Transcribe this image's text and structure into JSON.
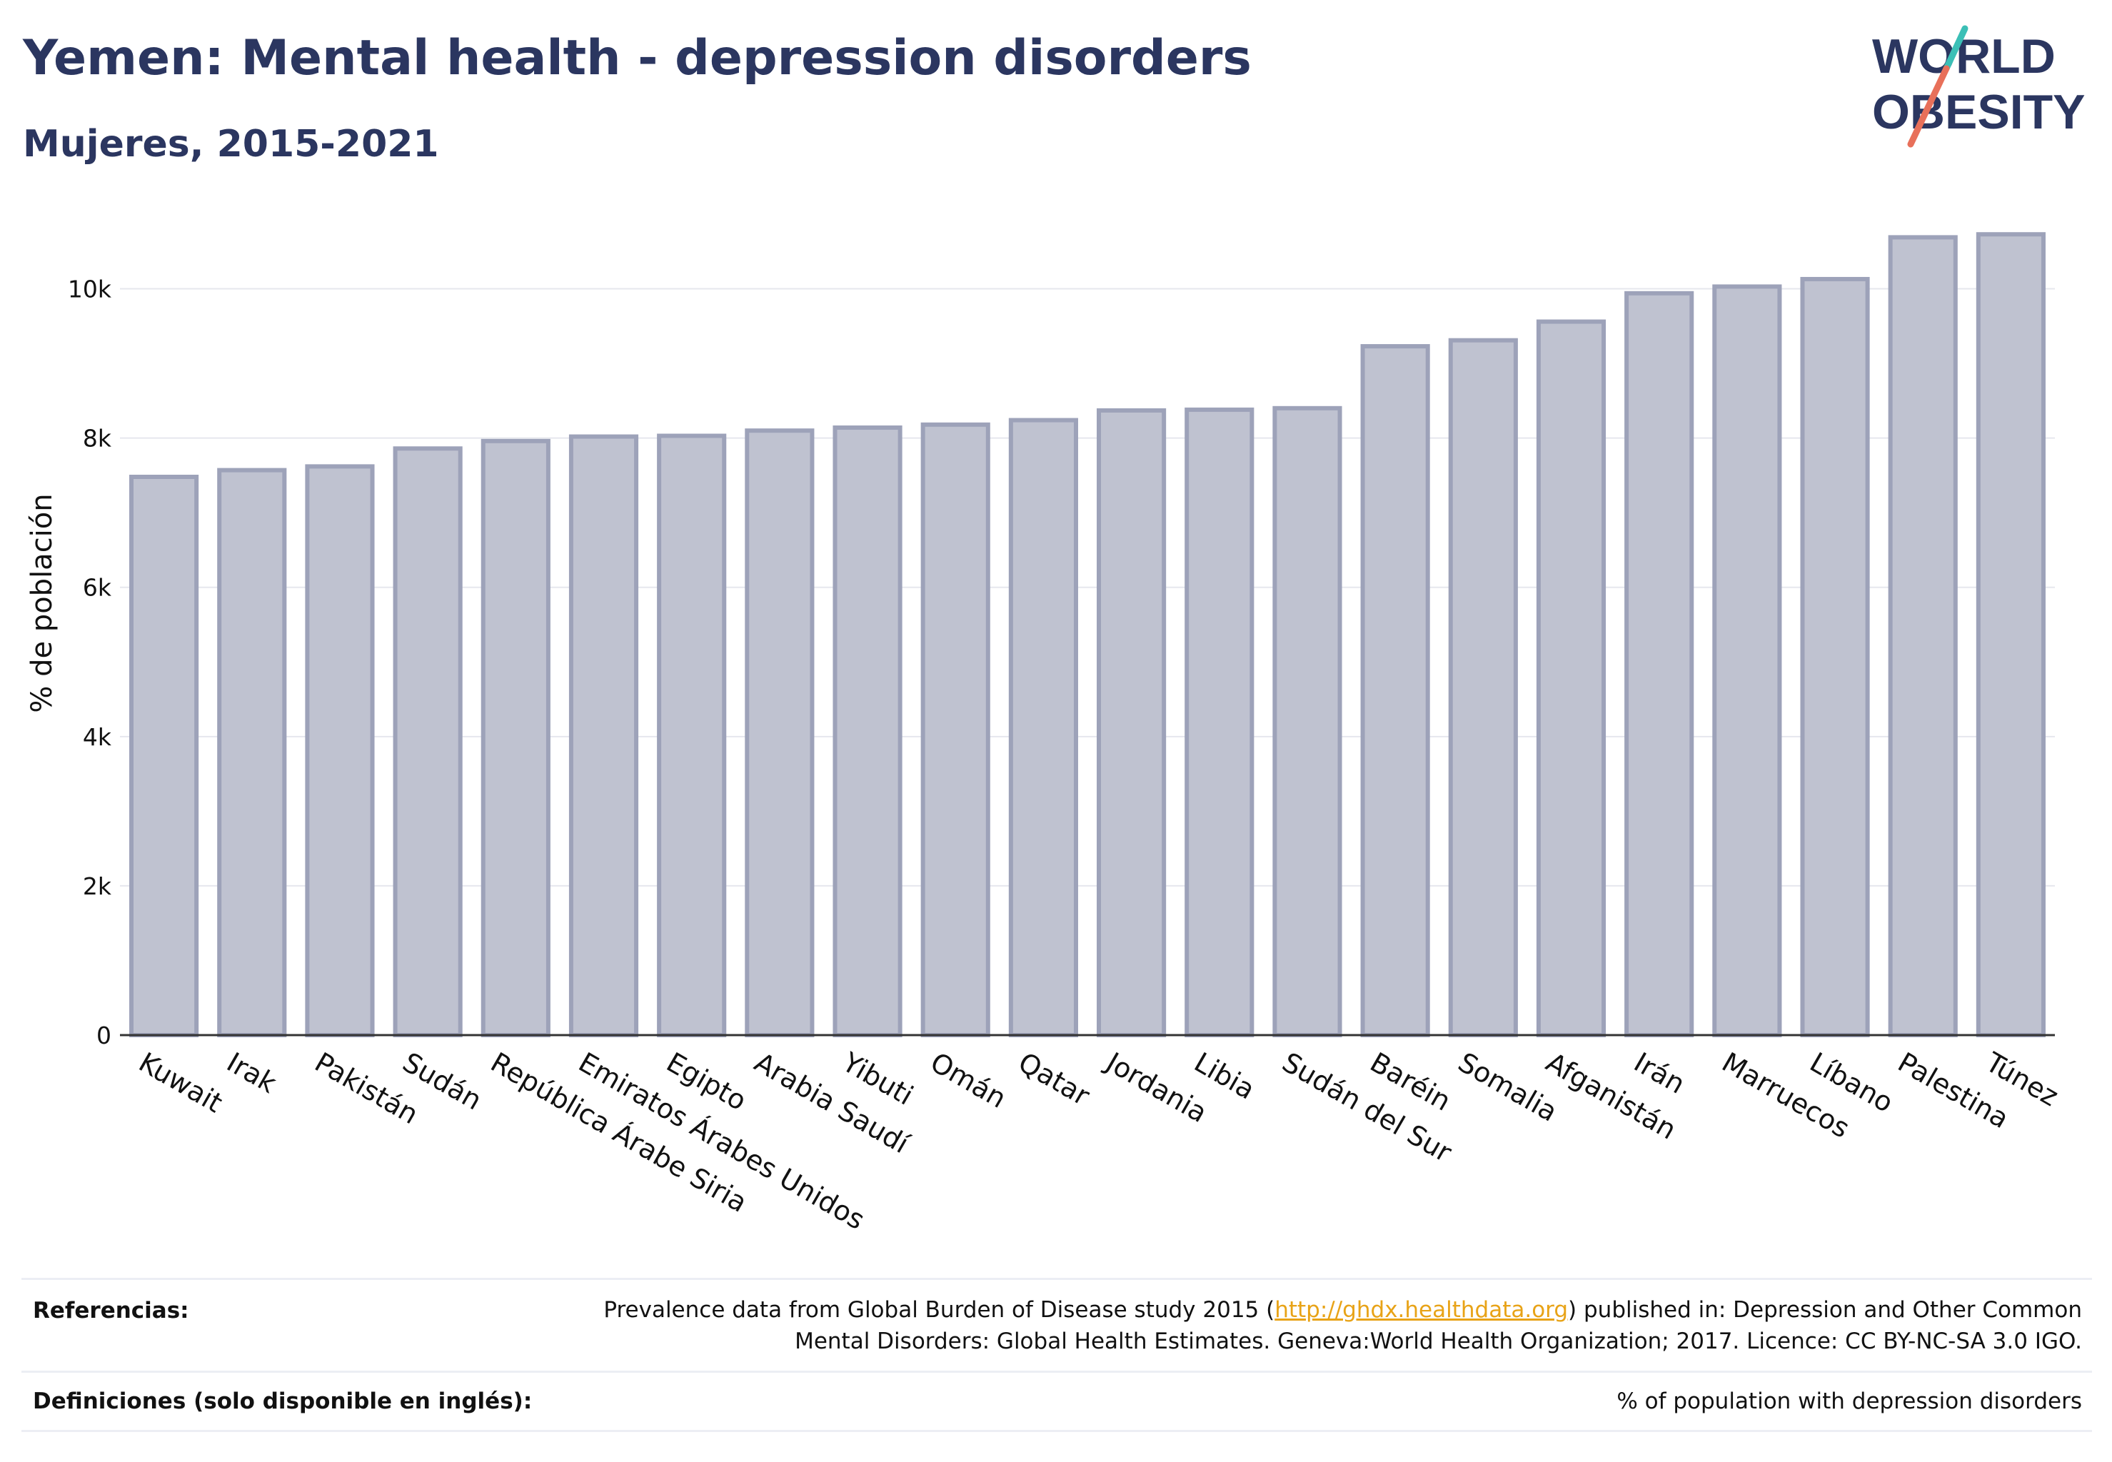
{
  "header": {
    "title": "Yemen: Mental health - depression disorders",
    "subtitle": "Mujeres, 2015-2021"
  },
  "logo": {
    "line1": "WORLD",
    "line2": "OBESITY",
    "colors": {
      "text": "#2b3660",
      "teal": "#3bbfb6",
      "coral": "#e8705a"
    }
  },
  "colors": {
    "bar_fill": "#bfc2d0",
    "bar_stroke": "#9da2b9",
    "grid": "#e6e7ee",
    "axis": "#333333",
    "title": "#2b3660",
    "link": "#e8a317"
  },
  "chart_data": {
    "type": "bar",
    "title": "Yemen: Mental health - depression disorders",
    "subtitle": "Mujeres, 2015-2021",
    "xlabel": "",
    "ylabel": "% de población",
    "ylim": [
      0,
      11000
    ],
    "yticks": [
      0,
      2000,
      4000,
      6000,
      8000,
      10000
    ],
    "ytick_labels": [
      "0",
      "2k",
      "4k",
      "6k",
      "8k",
      "10k"
    ],
    "grid": true,
    "categories": [
      "Kuwait",
      "Irak",
      "Pakistán",
      "Sudán",
      "República Árabe Siria",
      "Emiratos Árabes Unidos",
      "Egipto",
      "Arabia Saudí",
      "Yibuti",
      "Omán",
      "Qatar",
      "Jordania",
      "Libia",
      "Sudán del Sur",
      "Baréin",
      "Somalia",
      "Afganistán",
      "Irán",
      "Marruecos",
      "Líbano",
      "Palestina",
      "Túnez"
    ],
    "values": [
      7480,
      7570,
      7620,
      7860,
      7960,
      8020,
      8030,
      8100,
      8140,
      8180,
      8240,
      8370,
      8380,
      8400,
      9230,
      9310,
      9560,
      9940,
      10030,
      10130,
      10690,
      10730
    ]
  },
  "footer": {
    "references_label": "Referencias:",
    "references_pre": "Prevalence data from Global Burden of Disease study 2015 (",
    "references_link": "http://ghdx.healthdata.org",
    "references_post": ") published in: Depression and Other Common",
    "references_line2": "Mental Disorders: Global Health Estimates. Geneva:World Health Organization; 2017. Licence: CC BY-NC-SA 3.0 IGO.",
    "definitions_label": "Definiciones (solo disponible en inglés):",
    "definitions_text": "% of population with depression disorders"
  }
}
